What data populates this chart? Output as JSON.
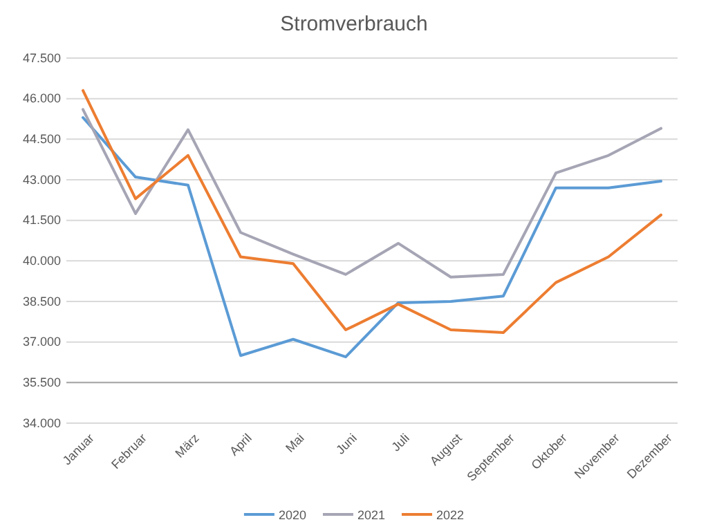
{
  "chart_data": {
    "type": "line",
    "title": "Stromverbrauch",
    "categories": [
      "Januar",
      "Februar",
      "März",
      "April",
      "Mai",
      "Juni",
      "Juli",
      "August",
      "September",
      "Oktober",
      "November",
      "Dezember"
    ],
    "series": [
      {
        "name": "2020",
        "color": "#5b9bd5",
        "values": [
          45300,
          43100,
          42800,
          36500,
          37100,
          36450,
          38450,
          38500,
          38700,
          42700,
          42700,
          42950
        ]
      },
      {
        "name": "2021",
        "color": "#a5a5b5",
        "values": [
          45600,
          41750,
          44850,
          41050,
          40250,
          39500,
          40650,
          39400,
          39500,
          43250,
          43900,
          44900
        ]
      },
      {
        "name": "2022",
        "color": "#ed7d31",
        "values": [
          46300,
          42300,
          43900,
          40150,
          39900,
          37450,
          38400,
          37450,
          37350,
          39200,
          40150,
          41700
        ]
      }
    ],
    "ylim": [
      34000,
      47500
    ],
    "yticks": [
      {
        "value": 34000,
        "label": "34.000"
      },
      {
        "value": 35500,
        "label": "35.500"
      },
      {
        "value": 37000,
        "label": "37.000"
      },
      {
        "value": 38500,
        "label": "38.500"
      },
      {
        "value": 40000,
        "label": "40.000"
      },
      {
        "value": 41500,
        "label": "41.500"
      },
      {
        "value": 43000,
        "label": "43.000"
      },
      {
        "value": 44500,
        "label": "44.500"
      },
      {
        "value": 46000,
        "label": "46.000"
      },
      {
        "value": 47500,
        "label": "47.500"
      }
    ],
    "ref_lines": [
      {
        "axis": "y",
        "value": 35500,
        "color": "#a6a6a6"
      }
    ],
    "grid": "y",
    "legend": "bottom",
    "marker": "none",
    "line_style": "solid"
  }
}
